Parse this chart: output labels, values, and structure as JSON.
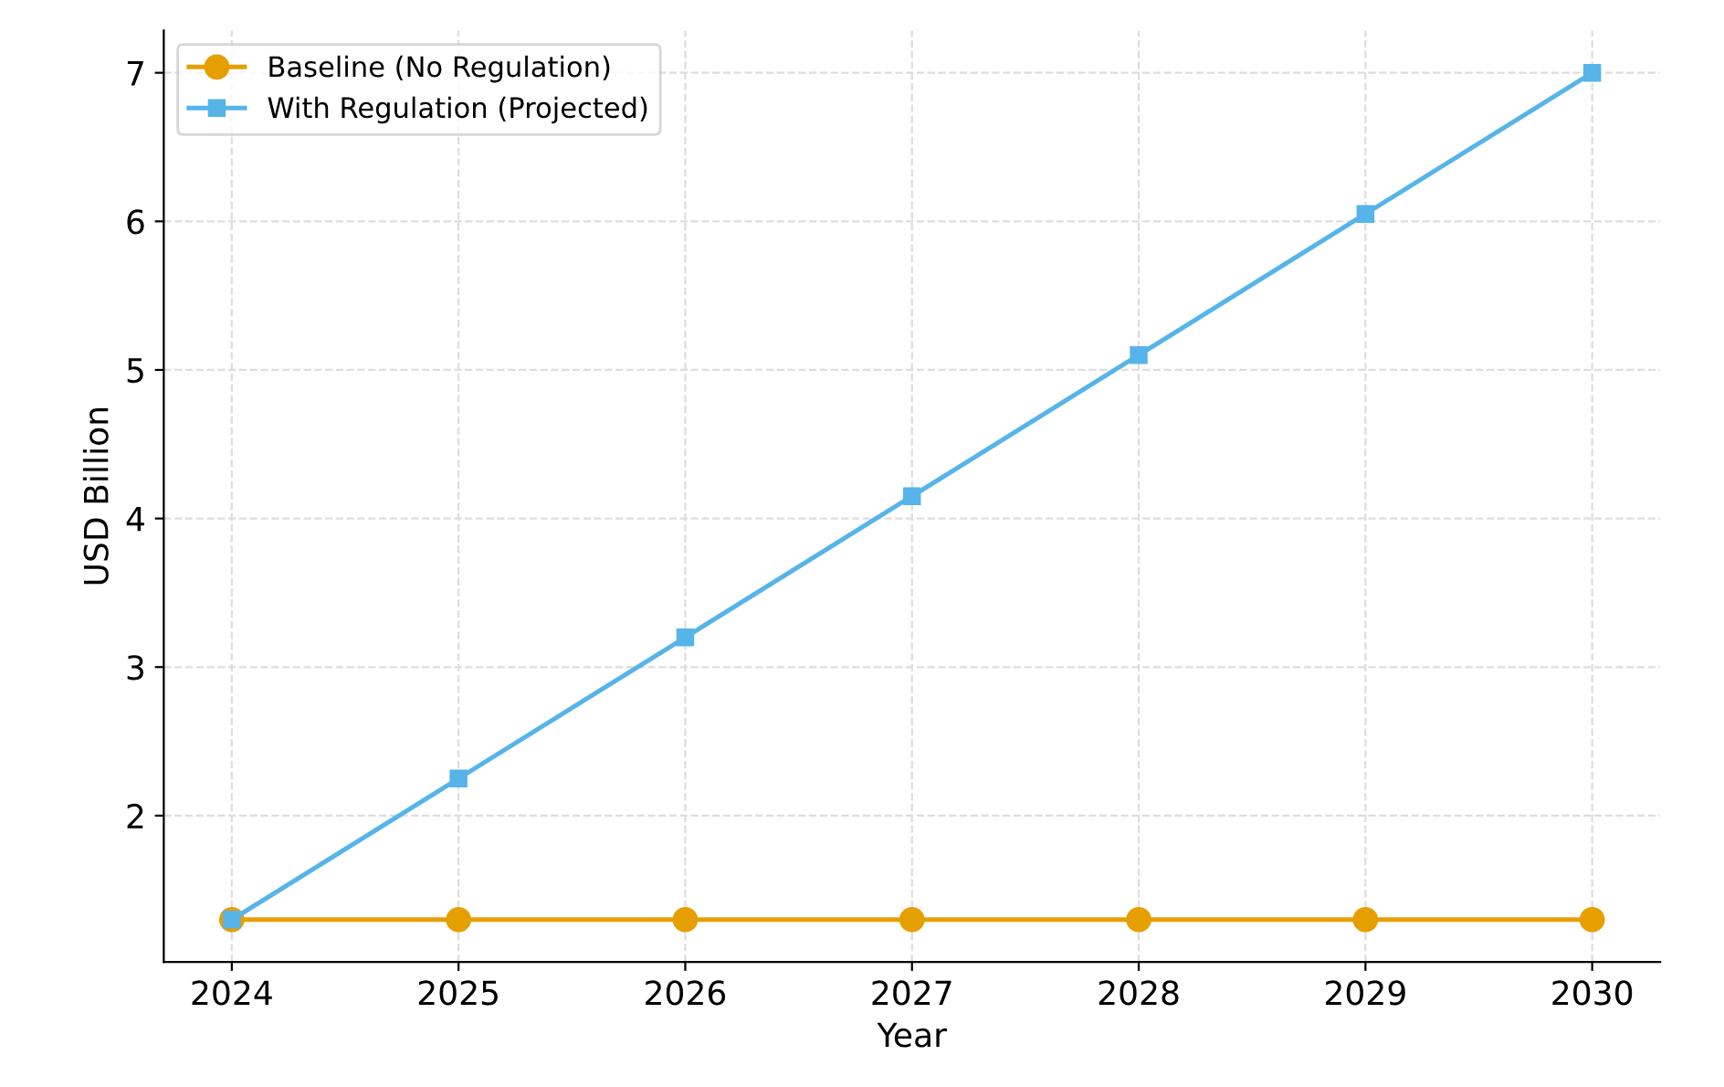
{
  "chart_data": {
    "type": "line",
    "xlabel": "Year",
    "ylabel": "USD Billion",
    "x": [
      2024,
      2025,
      2026,
      2027,
      2028,
      2029,
      2030
    ],
    "series": [
      {
        "name": "Baseline (No Regulation)",
        "color": "#e69f00",
        "marker": "circle",
        "values": [
          1.3,
          1.3,
          1.3,
          1.3,
          1.3,
          1.3,
          1.3
        ]
      },
      {
        "name": "With Regulation (Projected)",
        "color": "#56b4e9",
        "marker": "square",
        "values": [
          1.3,
          2.25,
          3.2,
          4.15,
          5.1,
          6.05,
          7.0
        ]
      }
    ],
    "xlim": [
      2023.7,
      2030.3
    ],
    "ylim": [
      1.015,
      7.285
    ],
    "xticks": [
      2024,
      2025,
      2026,
      2027,
      2028,
      2029,
      2030
    ],
    "yticks": [
      2,
      3,
      4,
      5,
      6,
      7
    ],
    "grid": true,
    "legend": "top left",
    "line_style": "solid"
  }
}
